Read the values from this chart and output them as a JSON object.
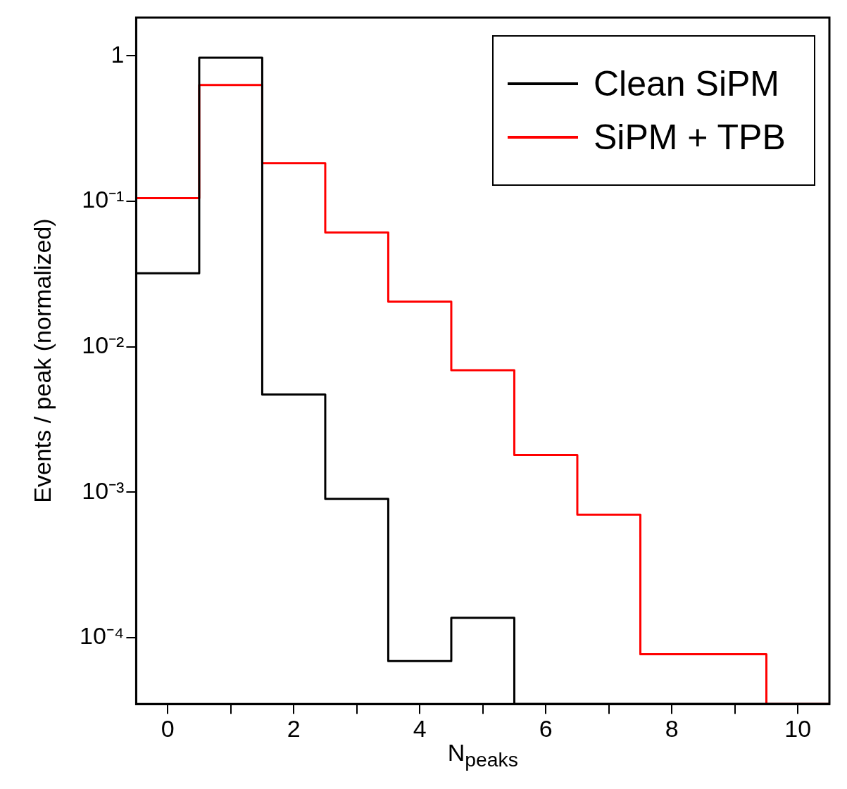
{
  "chart_data": {
    "type": "histogram",
    "xlabel": "N$_{peaks}$",
    "ylabel": "Events / peak (normalized)",
    "bins": [
      -0.5,
      0.5,
      1.5,
      2.5,
      3.5,
      4.5,
      5.5,
      6.5,
      7.5,
      8.5,
      9.5,
      10.5
    ],
    "series": [
      {
        "name": "Clean SiPM",
        "color": "#000000",
        "values": [
          0.032,
          0.97,
          0.0047,
          0.0009,
          6.9e-05,
          0.000137,
          null,
          null,
          null,
          null,
          null
        ]
      },
      {
        "name": "SiPM + TPB",
        "color": "#ff0000",
        "values": [
          0.105,
          0.63,
          0.183,
          0.061,
          0.0204,
          0.0069,
          0.0018,
          0.0007,
          7.7e-05,
          7.7e-05,
          null
        ]
      }
    ],
    "log": "y",
    "xlim": [
      -0.5,
      10.5
    ],
    "ylim": [
      3.5e-05,
      1.83
    ],
    "xticks": [
      0,
      {
        "value": 1,
        "label": null
      },
      2,
      {
        "value": 3,
        "label": null
      },
      4,
      {
        "value": 5,
        "label": null
      },
      6,
      {
        "value": 7,
        "label": null
      },
      8,
      {
        "value": 9,
        "label": null
      },
      10
    ],
    "yticks": [
      {
        "value": 0.0001,
        "label": "10⁻⁴"
      },
      {
        "value": 0.001,
        "label": "10⁻³"
      },
      {
        "value": 0.01,
        "label": "10⁻²"
      },
      {
        "value": 0.1,
        "label": "10⁻¹"
      },
      1
    ],
    "grid": false,
    "legend": "top right"
  }
}
